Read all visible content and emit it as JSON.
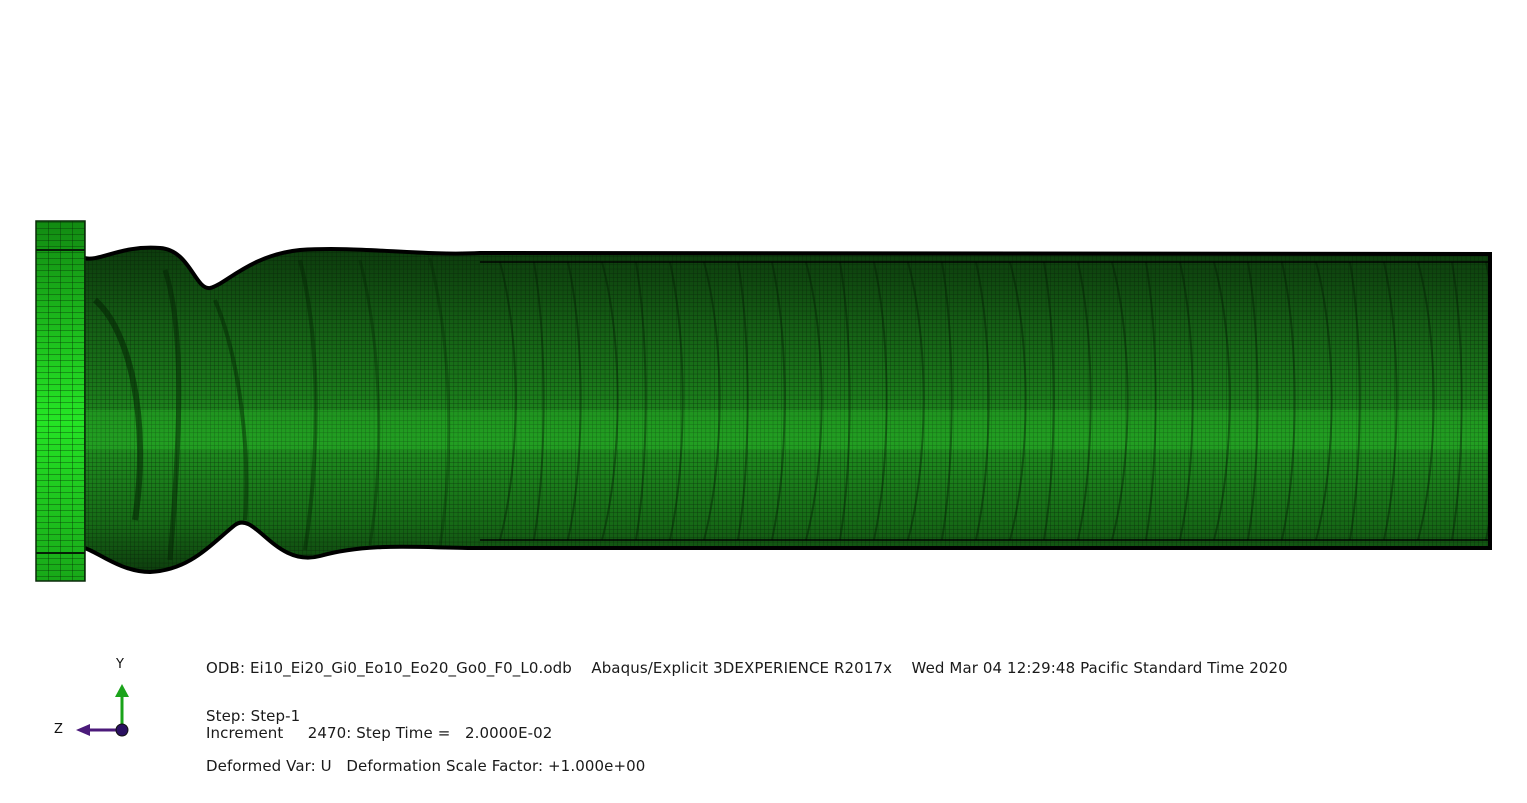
{
  "viewport": {
    "model": "deformed tube mesh"
  },
  "triad": {
    "y_label": "Y",
    "z_label": "Z"
  },
  "info": {
    "odb_line": "ODB: Ei10_Ei20_Gi0_Eo10_Eo20_Go0_F0_L0.odb    Abaqus/Explicit 3DEXPERIENCE R2017x    Wed Mar 04 12:29:48 Pacific Standard Time 2020",
    "step_line": "Step: Step-1",
    "increment_line": "Increment     2470: Step Time =   2.0000E-02",
    "deformed_line": "Deformed Var: U   Deformation Scale Factor: +1.000e+00"
  },
  "colors": {
    "mesh_bright": "#22dd22",
    "mesh_dark": "#0d3d0d",
    "outline": "#000000",
    "triad_y": "#1aa31a",
    "triad_z": "#4b1a7a"
  }
}
